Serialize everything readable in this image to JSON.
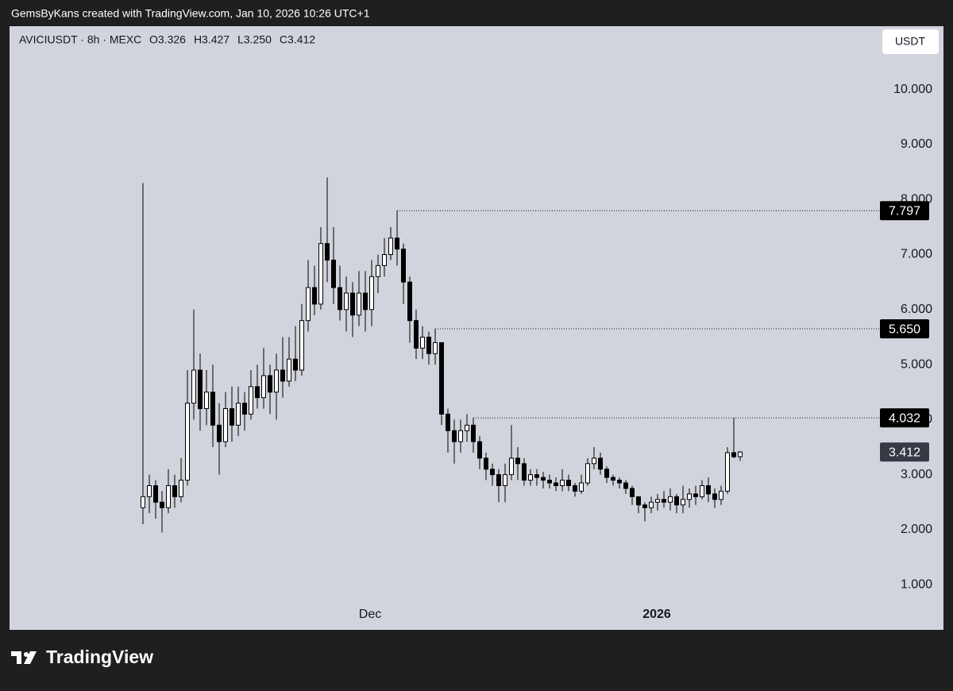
{
  "header": "GemsByKans created with TradingView.com, Jan 10, 2026 10:26 UTC+1",
  "brand": "TradingView",
  "currency_button": "USDT",
  "chart_data": {
    "type": "candlestick",
    "symbol": "AVICIUSDT · 8h · MEXC",
    "ohlc_legend": [
      {
        "value": 3.326,
        "label": "O3.326"
      },
      {
        "value": 3.427,
        "label": "H3.427"
      },
      {
        "value": 3.25,
        "label": "L3.250"
      },
      {
        "value": 3.412,
        "label": "C3.412"
      }
    ],
    "up_color": "#ffffff",
    "down_color": "#000000",
    "wick_color": "#000000",
    "candles": {
      "open": [
        2.4,
        2.6,
        2.8,
        2.5,
        2.4,
        2.8,
        2.6,
        2.9,
        4.3,
        4.9,
        4.2,
        4.5,
        3.9,
        3.6,
        4.2,
        3.9,
        4.3,
        4.1,
        4.6,
        4.4,
        4.8,
        4.5,
        4.9,
        4.7,
        5.1,
        4.9,
        5.8,
        6.4,
        6.1,
        7.2,
        6.9,
        6.4,
        6.0,
        6.3,
        5.9,
        6.3,
        6.0,
        6.6,
        6.8,
        7.0,
        7.3,
        7.1,
        6.5,
        5.8,
        5.3,
        5.5,
        5.2,
        5.4,
        4.1,
        3.8,
        3.6,
        3.8,
        3.9,
        3.6,
        3.3,
        3.1,
        3.0,
        2.8,
        3.0,
        3.3,
        3.2,
        2.9,
        3.0,
        2.95,
        2.9,
        2.85,
        2.8,
        2.9,
        2.8,
        2.7,
        2.85,
        3.2,
        3.3,
        3.1,
        2.95,
        2.9,
        2.85,
        2.75,
        2.6,
        2.45,
        2.4,
        2.5,
        2.55,
        2.5,
        2.6,
        2.45,
        2.55,
        2.65,
        2.6,
        2.8,
        2.65,
        2.55,
        2.7,
        3.4,
        3.326
      ],
      "high": [
        8.3,
        3.0,
        2.9,
        2.7,
        3.1,
        3.0,
        3.3,
        4.9,
        6.0,
        5.2,
        4.9,
        5.0,
        4.3,
        4.5,
        4.6,
        4.6,
        4.5,
        4.9,
        5.0,
        5.3,
        5.0,
        5.2,
        5.5,
        5.5,
        5.7,
        6.1,
        6.9,
        6.8,
        7.5,
        8.4,
        7.5,
        6.8,
        6.6,
        6.5,
        6.7,
        6.7,
        6.9,
        7.0,
        7.3,
        7.5,
        7.797,
        7.2,
        6.6,
        6.0,
        5.7,
        5.6,
        5.65,
        5.4,
        4.2,
        4.0,
        4.0,
        4.1,
        4.032,
        3.7,
        3.4,
        3.2,
        3.1,
        3.2,
        3.9,
        3.5,
        3.3,
        3.1,
        3.1,
        3.05,
        3.0,
        2.95,
        3.1,
        3.0,
        2.85,
        3.0,
        3.3,
        3.5,
        3.4,
        3.15,
        3.0,
        2.95,
        2.9,
        2.8,
        2.6,
        2.5,
        2.6,
        2.65,
        2.7,
        2.75,
        2.65,
        2.8,
        2.75,
        2.8,
        2.9,
        2.95,
        2.75,
        2.8,
        3.5,
        4.03,
        3.427
      ],
      "low": [
        2.1,
        2.3,
        2.2,
        1.95,
        2.3,
        2.4,
        2.5,
        2.8,
        4.0,
        3.8,
        3.9,
        3.5,
        3.0,
        3.5,
        3.6,
        3.7,
        3.8,
        4.0,
        4.2,
        4.2,
        4.1,
        4.0,
        4.4,
        4.6,
        4.7,
        4.8,
        5.6,
        5.9,
        6.0,
        6.5,
        6.1,
        5.8,
        5.6,
        5.5,
        5.7,
        5.6,
        5.7,
        6.3,
        6.6,
        6.9,
        6.8,
        6.1,
        5.4,
        5.1,
        5.1,
        5.0,
        5.0,
        3.9,
        3.4,
        3.2,
        3.4,
        3.6,
        3.4,
        3.1,
        2.9,
        2.8,
        2.5,
        2.5,
        2.9,
        2.9,
        2.8,
        2.8,
        2.8,
        2.75,
        2.75,
        2.7,
        2.7,
        2.7,
        2.6,
        2.65,
        2.8,
        3.1,
        3.0,
        2.85,
        2.8,
        2.75,
        2.65,
        2.45,
        2.3,
        2.15,
        2.3,
        2.35,
        2.4,
        2.35,
        2.3,
        2.3,
        2.4,
        2.45,
        2.55,
        2.5,
        2.4,
        2.45,
        2.65,
        3.3,
        3.25
      ],
      "close": [
        2.6,
        2.8,
        2.5,
        2.4,
        2.8,
        2.6,
        2.9,
        4.3,
        4.9,
        4.2,
        4.5,
        3.9,
        3.6,
        4.2,
        3.9,
        4.3,
        4.1,
        4.6,
        4.4,
        4.8,
        4.5,
        4.9,
        4.7,
        5.1,
        4.9,
        5.8,
        6.4,
        6.1,
        7.2,
        6.9,
        6.4,
        6.0,
        6.3,
        5.9,
        6.3,
        6.0,
        6.6,
        6.8,
        7.0,
        7.3,
        7.1,
        6.5,
        5.8,
        5.3,
        5.5,
        5.2,
        5.4,
        4.1,
        3.8,
        3.6,
        3.8,
        3.9,
        3.6,
        3.3,
        3.1,
        3.0,
        2.8,
        3.0,
        3.3,
        3.2,
        2.9,
        3.0,
        2.95,
        2.9,
        2.85,
        2.8,
        2.9,
        2.8,
        2.7,
        2.85,
        3.2,
        3.3,
        3.1,
        2.95,
        2.9,
        2.85,
        2.75,
        2.6,
        2.45,
        2.4,
        2.5,
        2.55,
        2.5,
        2.6,
        2.45,
        2.55,
        2.65,
        2.6,
        2.8,
        2.65,
        2.55,
        2.7,
        3.4,
        3.326,
        3.412
      ]
    },
    "price_lines": [
      {
        "value": 7.797,
        "label": "7.797"
      },
      {
        "value": 5.65,
        "label": "5.650"
      },
      {
        "value": 4.032,
        "label": "4.032"
      }
    ],
    "last_price": 3.412,
    "xlim": [
      -21,
      115
    ],
    "xticks": [
      {
        "value": 35.75,
        "label": "Dec"
      },
      {
        "value": 80.875,
        "label": "2026"
      }
    ],
    "ylim": [
      0.18,
      11.15
    ],
    "yticks": [
      {
        "value": 1,
        "label": "1.000"
      },
      {
        "value": 2,
        "label": "2.000"
      },
      {
        "value": 3,
        "label": "3.000"
      },
      {
        "value": 4,
        "label": "4.000"
      },
      {
        "value": 5,
        "label": "5.000"
      },
      {
        "value": 6,
        "label": "6.000"
      },
      {
        "value": 7,
        "label": "7.000"
      },
      {
        "value": 8,
        "label": "8.000"
      },
      {
        "value": 9,
        "label": "9.000"
      },
      {
        "value": 10,
        "label": "10.000"
      }
    ]
  }
}
